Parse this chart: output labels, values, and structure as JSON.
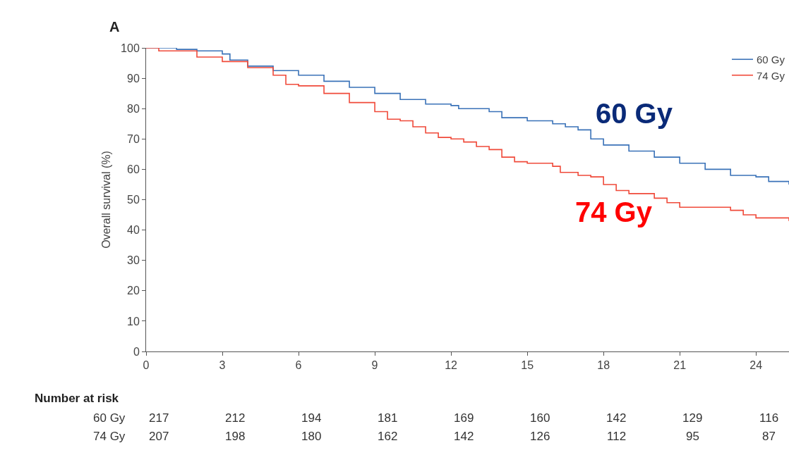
{
  "chart_data": {
    "type": "step",
    "title": "A",
    "ylabel": "Overall survival (%)",
    "xlim": [
      0,
      25.3
    ],
    "xticks": [
      0,
      3,
      6,
      9,
      12,
      15,
      18,
      21,
      24
    ],
    "ylim": [
      0,
      100
    ],
    "yticks": [
      0,
      10,
      20,
      30,
      40,
      50,
      60,
      70,
      80,
      90,
      100
    ],
    "legend": "top right",
    "marker": "none",
    "line_style": "solid",
    "series": [
      {
        "name": "60 Gy",
        "color": "#3a72b8",
        "x": [
          0,
          1.2,
          2,
          3,
          3.3,
          4,
          5,
          6,
          7,
          8,
          9,
          10,
          11,
          12,
          12.3,
          13.5,
          14,
          15,
          16,
          16.5,
          17,
          17.5,
          18,
          19,
          20,
          21,
          22,
          23,
          24,
          24.5,
          25.3
        ],
        "values": [
          100,
          99.5,
          99,
          98,
          96,
          94,
          92.5,
          91,
          89,
          87,
          85,
          83,
          81.5,
          81,
          80,
          79,
          77,
          76,
          75,
          74,
          73,
          70,
          68,
          66,
          64,
          62,
          60,
          58,
          57.5,
          56,
          55
        ]
      },
      {
        "name": "74 Gy",
        "color": "#f04a3a",
        "x": [
          0,
          0.5,
          2,
          3,
          4,
          5,
          5.5,
          6,
          7,
          8,
          9,
          9.5,
          10,
          10.5,
          11,
          11.5,
          12,
          12.5,
          13,
          13.5,
          14,
          14.5,
          15,
          16,
          16.3,
          17,
          17.5,
          18,
          18.5,
          19,
          20,
          20.5,
          21,
          22,
          23,
          23.5,
          24,
          25.3
        ],
        "values": [
          100,
          99,
          97,
          95.5,
          93.5,
          91,
          88,
          87.5,
          85,
          82,
          79,
          76.5,
          76,
          74,
          72,
          70.5,
          70,
          69,
          67.5,
          66.5,
          64,
          62.5,
          62,
          61,
          59,
          58,
          57.5,
          55,
          53,
          52,
          50.5,
          49,
          47.5,
          47.5,
          46.5,
          45,
          44,
          43
        ]
      }
    ],
    "annotations": [
      "60 Gy",
      "74 Gy",
      "Number at risk",
      "60 Gy",
      "217",
      "212",
      "194",
      "181",
      "169",
      "160",
      "142",
      "129",
      "116",
      "74 Gy",
      "207",
      "198",
      "180",
      "162",
      "142",
      "126",
      "112",
      "95",
      "87"
    ]
  }
}
